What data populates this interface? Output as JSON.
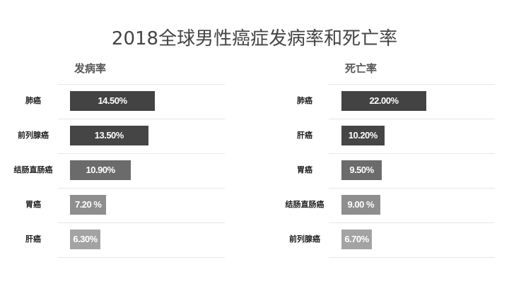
{
  "chart_data": [
    {
      "type": "bar",
      "orientation": "horizontal",
      "title": "发病率",
      "categories": [
        "肺癌",
        "前列腺癌",
        "结肠直肠癌",
        "胃癌",
        "肝癌"
      ],
      "values": [
        14.5,
        13.5,
        10.9,
        7.2,
        6.3
      ],
      "labels": [
        "14.50%",
        "13.50%",
        "10.90%",
        "7.20 %",
        "6.30%"
      ],
      "colors": [
        "#434343",
        "#454545",
        "#6b6b6b",
        "#8e8e8e",
        "#a3a3a3"
      ]
    },
    {
      "type": "bar",
      "orientation": "horizontal",
      "title": "死亡率",
      "categories": [
        "肺癌",
        "肝癌",
        "胃癌",
        "结肠直肠癌",
        "前列腺癌"
      ],
      "values": [
        22.0,
        10.2,
        9.5,
        9.0,
        6.7
      ],
      "labels": [
        "22.00%",
        "10.20%",
        "9.50%",
        "9.00 %",
        "6.70%"
      ],
      "colors": [
        "#434343",
        "#454545",
        "#6b6b6b",
        "#8e8e8e",
        "#a3a3a3"
      ]
    }
  ],
  "title": "2018全球男性癌症发病率和死亡率"
}
